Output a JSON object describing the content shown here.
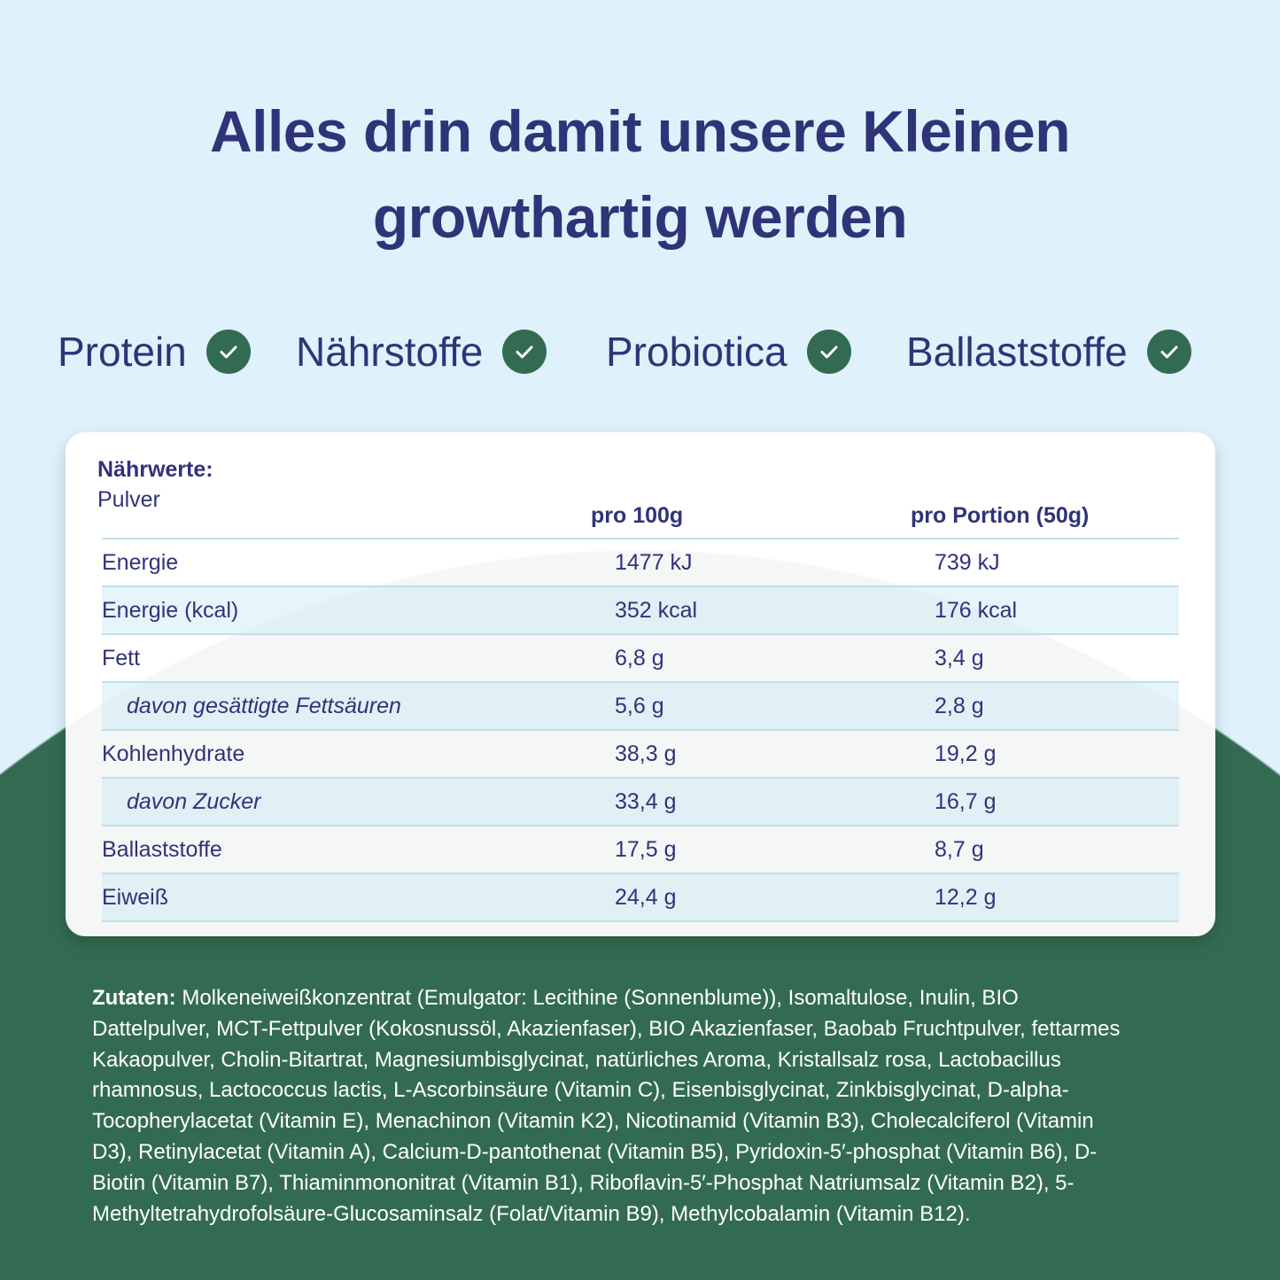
{
  "colors": {
    "navy": "#2f3478",
    "green": "#336b52",
    "sky": "#dff1fb"
  },
  "headline": {
    "line1": "Alles drin damit unsere Kleinen",
    "line2": "growthartig werden"
  },
  "features": [
    {
      "label": "Protein",
      "icon": "check-circle-icon"
    },
    {
      "label": "Nährstoffe",
      "icon": "check-circle-icon"
    },
    {
      "label": "Probiotica",
      "icon": "check-circle-icon"
    },
    {
      "label": "Ballaststoffe",
      "icon": "check-circle-icon"
    }
  ],
  "nutrition": {
    "title": "Nährwerte:",
    "subtitle": "Pulver",
    "columns": [
      "pro 100g",
      "pro Portion (50g)"
    ],
    "rows": [
      {
        "name": "Energie",
        "per100": "1477 kJ",
        "perPortion": "739 kJ"
      },
      {
        "name": "Energie (kcal)",
        "per100": "352 kcal",
        "perPortion": "176 kcal"
      },
      {
        "name": "Fett",
        "per100": "6,8 g",
        "perPortion": "3,4 g"
      },
      {
        "name": "davon gesättigte Fettsäuren",
        "per100": "5,6 g",
        "perPortion": "2,8 g",
        "sub": true
      },
      {
        "name": "Kohlenhydrate",
        "per100": "38,3 g",
        "perPortion": "19,2 g"
      },
      {
        "name": "davon Zucker",
        "per100": "33,4 g",
        "perPortion": "16,7 g",
        "sub": true
      },
      {
        "name": "Ballaststoffe",
        "per100": "17,5 g",
        "perPortion": "8,7 g"
      },
      {
        "name": "Eiweiß",
        "per100": "24,4 g",
        "perPortion": "12,2 g"
      }
    ]
  },
  "ingredients": {
    "label": "Zutaten:",
    "lines": [
      " Molkeneiweißkonzentrat (Emulgator: Lecithine (Sonnenblume)), Isomaltulose, Inulin, BIO",
      "Dattelpulver, MCT-Fettpulver (Kokosnussöl, Akazienfaser), BIO Akazienfaser, Baobab Fruchtpulver, fettarmes",
      "Kakaopulver, Cholin-Bitartrat, Magnesiumbisglycinat, natürliches Aroma, Kristallsalz rosa, Lactobacillus",
      "rhamnosus, Lactococcus lactis, L-Ascorbinsäure (Vitamin C), Eisenbisglycinat, Zinkbisglycinat, D-alpha-",
      "Tocopherylacetat (Vitamin E), Menachinon (Vitamin K2), Nicotinamid (Vitamin B3), Cholecalciferol (Vitamin",
      "D3), Retinylacetat (Vitamin A), Calcium-D-pantothenat (Vitamin B5), Pyridoxin-5′-phosphat (Vitamin B6), D-",
      "Biotin (Vitamin B7), Thiaminmononitrat (Vitamin B1), Riboflavin-5′-Phosphat Natriumsalz (Vitamin B2), 5-",
      "Methyltetrahydrofolsäure-Glucosaminsalz (Folat/Vitamin B9), Methylcobalamin (Vitamin B12)."
    ]
  }
}
